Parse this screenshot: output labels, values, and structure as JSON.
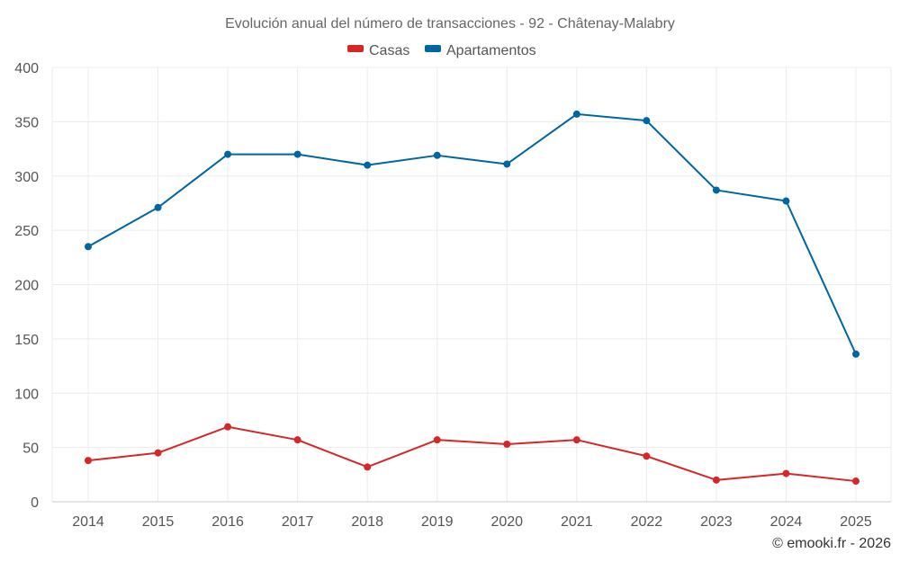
{
  "chart_data": {
    "type": "line",
    "title": "Evolución anual del número de transacciones - 92 - Châtenay-Malabry",
    "categories": [
      "2014",
      "2015",
      "2016",
      "2017",
      "2018",
      "2019",
      "2020",
      "2021",
      "2022",
      "2023",
      "2024",
      "2025"
    ],
    "series": [
      {
        "name": "Casas",
        "color": "#d62728",
        "values": [
          38,
          45,
          69,
          57,
          32,
          57,
          53,
          57,
          42,
          20,
          26,
          19
        ]
      },
      {
        "name": "Apartamentos",
        "color": "#0066a1",
        "values": [
          235,
          271,
          320,
          320,
          310,
          319,
          311,
          357,
          351,
          287,
          277,
          136
        ]
      }
    ],
    "y_ticks": [
      0,
      50,
      100,
      150,
      200,
      250,
      300,
      350,
      400
    ],
    "ylim": [
      0,
      400
    ],
    "xlabel": "",
    "ylabel": "",
    "grid": true,
    "legend_position": "top-center"
  },
  "credit": "© emooki.fr - 2026",
  "colors": {
    "grid": "#ececec",
    "axis": "#cccccc",
    "text": "#555555"
  }
}
